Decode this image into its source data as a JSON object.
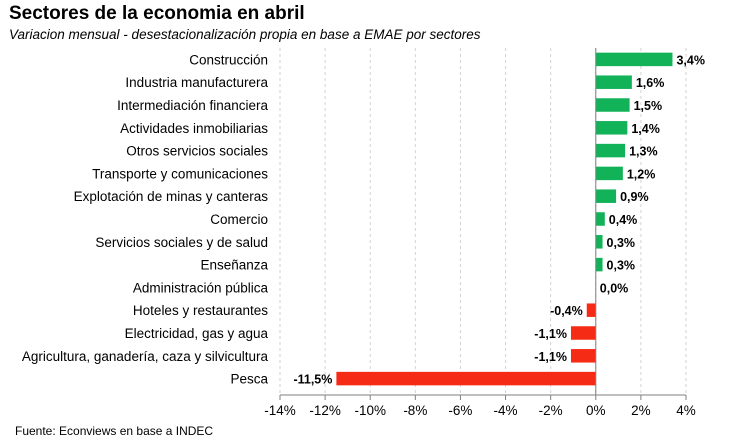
{
  "title": "Sectores de la economia en abril",
  "subtitle": "Variacion mensual - desestacionalización propia en base a EMAE por sectores",
  "source": "Fuente: Econviews en base a INDEC",
  "colors": {
    "positive": "#12b358",
    "negative": "#f52b16",
    "grid": "#d2d2d2",
    "axis": "#7f7f7f"
  },
  "chart_data": {
    "type": "bar",
    "orientation": "horizontal",
    "title": "Sectores de la economia en abril",
    "subtitle": "Variacion mensual - desestacionalización propia en base a EMAE por sectores",
    "categories": [
      "Construcción",
      "Industria manufacturera",
      "Intermediación financiera",
      "Actividades inmobiliarias",
      "Otros servicios sociales",
      "Transporte y comunicaciones",
      "Explotación de minas y canteras",
      "Comercio",
      "Servicios sociales y de salud",
      "Enseñanza",
      "Administración pública",
      "Hoteles y restaurantes",
      "Electricidad, gas y agua",
      "Agricultura, ganadería, caza y silvicultura",
      "Pesca"
    ],
    "values": [
      3.4,
      1.6,
      1.5,
      1.4,
      1.3,
      1.2,
      0.9,
      0.4,
      0.3,
      0.3,
      0.0,
      -0.4,
      -1.1,
      -1.1,
      -11.5
    ],
    "data_labels": [
      "3,4%",
      "1,6%",
      "1,5%",
      "1,4%",
      "1,3%",
      "1,2%",
      "0,9%",
      "0,4%",
      "0,3%",
      "0,3%",
      "0,0%",
      "-0,4%",
      "-1,1%",
      "-1,1%",
      "-11,5%"
    ],
    "xlim": [
      -14,
      4
    ],
    "xticks": [
      -14,
      -12,
      -10,
      -8,
      -6,
      -4,
      -2,
      0,
      2,
      4
    ],
    "xtick_labels": [
      "-14%",
      "-12%",
      "-10%",
      "-8%",
      "-6%",
      "-4%",
      "-2%",
      "0%",
      "2%",
      "4%"
    ],
    "xlabel": "",
    "ylabel": "",
    "grid": "vertical"
  }
}
